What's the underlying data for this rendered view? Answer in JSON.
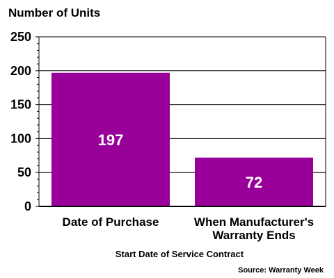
{
  "chart_data": {
    "type": "bar",
    "ylabel": "Number of Units",
    "xlabel": "Start Date of Service Contract",
    "source": "Source: Warranty Week",
    "categories": [
      [
        "Date of Purchase"
      ],
      [
        "When Manufacturer's",
        "Warranty Ends"
      ]
    ],
    "values": [
      197,
      72
    ],
    "ylim": [
      0,
      250
    ],
    "yticks": [
      0,
      50,
      100,
      150,
      200,
      250
    ],
    "grid": true,
    "legend": "none",
    "colors": {
      "bar": "#990099",
      "grid": "#000000",
      "axis": "#000000"
    }
  }
}
